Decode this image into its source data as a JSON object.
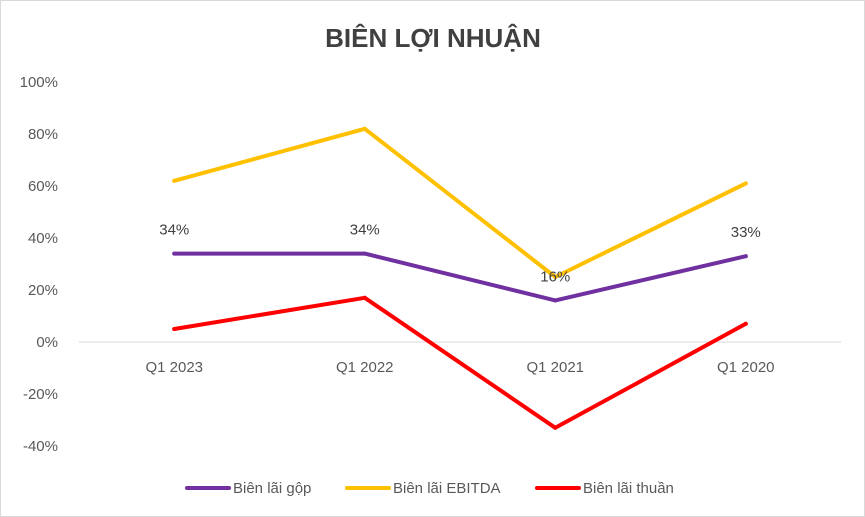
{
  "chart_data": {
    "type": "line",
    "title": "BIÊN LỢI NHUẬN",
    "categories": [
      "Q1 2023",
      "Q1 2022",
      "Q1 2021",
      "Q1 2020"
    ],
    "yticks": [
      "100%",
      "80%",
      "60%",
      "40%",
      "20%",
      "0%",
      "-20%",
      "-40%"
    ],
    "ylim": [
      -40,
      100
    ],
    "y_unit": "%",
    "grid": false,
    "legend_position": "bottom",
    "series": [
      {
        "name": "Biên lãi gộp",
        "color": "#7030a0",
        "values": [
          34,
          34,
          16,
          33
        ],
        "data_labels": [
          "34%",
          "34%",
          "16%",
          "33%"
        ]
      },
      {
        "name": "Biên lãi EBITDA",
        "color": "#ffc000",
        "values": [
          62,
          82,
          25,
          61
        ]
      },
      {
        "name": "Biên lãi thuần",
        "color": "#ff0000",
        "values": [
          5,
          17,
          -33,
          7
        ]
      }
    ]
  }
}
